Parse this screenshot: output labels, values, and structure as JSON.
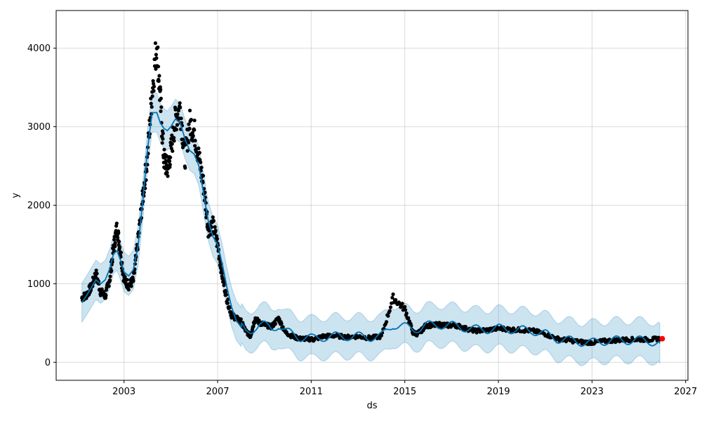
{
  "chart_data": {
    "type": "line",
    "title": "",
    "xlabel": "ds",
    "ylabel": "y",
    "xlim": [
      2000.1,
      2027.1
    ],
    "ylim": [
      -230,
      4480
    ],
    "grid": true,
    "x_ticks": [
      2003,
      2007,
      2011,
      2015,
      2019,
      2023,
      2027
    ],
    "y_ticks": [
      0,
      1000,
      2000,
      3000,
      4000
    ],
    "colors": {
      "observed": "#000000",
      "forecast_line": "#0072B2",
      "uncertainty_band": "#0072B2",
      "last_point": "#ff0000"
    },
    "series": [
      {
        "kind": "observed",
        "x": [
          2001.2,
          2001.4,
          2001.6,
          2001.8,
          2002.0,
          2002.2,
          2002.4,
          2002.55,
          2002.7,
          2002.85,
          2003.0,
          2003.2,
          2003.4,
          2003.6,
          2003.8,
          2004.0,
          2004.2,
          2004.4,
          2004.55,
          2004.7,
          2004.85,
          2005.0,
          2005.2,
          2005.4,
          2005.6,
          2005.8,
          2006.0,
          2006.2,
          2006.4,
          2006.6,
          2006.8,
          2007.0,
          2007.2,
          2007.4,
          2007.6,
          2007.8,
          2008.0,
          2008.2,
          2008.4,
          2008.6,
          2008.8,
          2009.0,
          2009.3,
          2009.6,
          2009.9,
          2010.2,
          2010.5,
          2010.8,
          2011.1,
          2011.5,
          2012.0,
          2012.5,
          2013.0,
          2013.5,
          2014.0,
          2014.5,
          2015.0,
          2015.35,
          2015.5,
          2015.7,
          2015.9,
          2016.2,
          2016.5,
          2016.8,
          2017.2,
          2017.6,
          2018.0,
          2018.5,
          2019.0,
          2019.5,
          2020.0,
          2020.5,
          2021.0,
          2021.5,
          2022.0,
          2022.5,
          2023.0,
          2023.5,
          2024.0,
          2024.5,
          2025.0,
          2025.5,
          2025.9
        ],
        "y": [
          820,
          860,
          960,
          1130,
          900,
          840,
          1080,
          1450,
          1720,
          1400,
          1050,
          980,
          1040,
          1550,
          2100,
          2600,
          3450,
          4050,
          3350,
          2600,
          2450,
          2680,
          3100,
          3250,
          2600,
          3050,
          2950,
          2600,
          2250,
          1700,
          1750,
          1500,
          1100,
          800,
          600,
          560,
          520,
          400,
          330,
          560,
          500,
          480,
          450,
          560,
          380,
          330,
          300,
          300,
          290,
          330,
          340,
          320,
          330,
          310,
          330,
          820,
          680,
          380,
          360,
          400,
          470,
          470,
          480,
          470,
          470,
          430,
          400,
          410,
          430,
          420,
          410,
          400,
          360,
          300,
          280,
          260,
          250,
          270,
          280,
          290,
          290,
          290,
          300
        ]
      },
      {
        "kind": "forecast",
        "x": [
          2001.2,
          2001.4,
          2001.6,
          2001.8,
          2002.0,
          2002.2,
          2002.4,
          2002.55,
          2002.7,
          2002.85,
          2003.0,
          2003.2,
          2003.4,
          2003.6,
          2003.8,
          2004.0,
          2004.2,
          2004.4,
          2004.55,
          2004.7,
          2004.85,
          2005.0,
          2005.2,
          2005.4,
          2005.6,
          2005.8,
          2006.0,
          2006.2,
          2006.4,
          2006.6,
          2006.8,
          2007.0,
          2007.2,
          2007.4,
          2007.6,
          2007.8,
          2008.0,
          2008.2,
          2008.4,
          2008.6,
          2008.8,
          2009.0,
          2009.3,
          2009.6,
          2009.9,
          2010.2,
          2010.5,
          2010.8,
          2011.1,
          2011.5,
          2012.0,
          2012.5,
          2013.0,
          2013.5,
          2014.0,
          2014.5,
          2015.0,
          2015.35,
          2015.5,
          2015.7,
          2015.9,
          2016.2,
          2016.5,
          2016.8,
          2017.2,
          2017.6,
          2018.0,
          2018.5,
          2019.0,
          2019.5,
          2020.0,
          2020.5,
          2021.0,
          2021.5,
          2022.0,
          2022.5,
          2023.0,
          2023.5,
          2024.0,
          2024.5,
          2025.0,
          2025.5,
          2025.9
        ],
        "yhat": [
          760,
          850,
          950,
          1050,
          1000,
          1050,
          1200,
          1380,
          1420,
          1300,
          1150,
          1100,
          1180,
          1480,
          2050,
          2700,
          3180,
          3180,
          3050,
          2980,
          2950,
          3000,
          3100,
          3050,
          2850,
          2700,
          2650,
          2500,
          2150,
          1800,
          1600,
          1500,
          1250,
          950,
          700,
          530,
          450,
          380,
          400,
          450,
          480,
          470,
          420,
          480,
          390,
          360,
          320,
          320,
          300,
          320,
          330,
          330,
          330,
          320,
          330,
          480,
          450,
          420,
          430,
          440,
          470,
          470,
          480,
          470,
          460,
          440,
          420,
          420,
          430,
          420,
          410,
          400,
          360,
          300,
          280,
          260,
          250,
          270,
          280,
          280,
          280,
          270,
          240
        ],
        "band": 250
      }
    ],
    "last_point": {
      "x": 2026.0,
      "y": 300
    }
  }
}
